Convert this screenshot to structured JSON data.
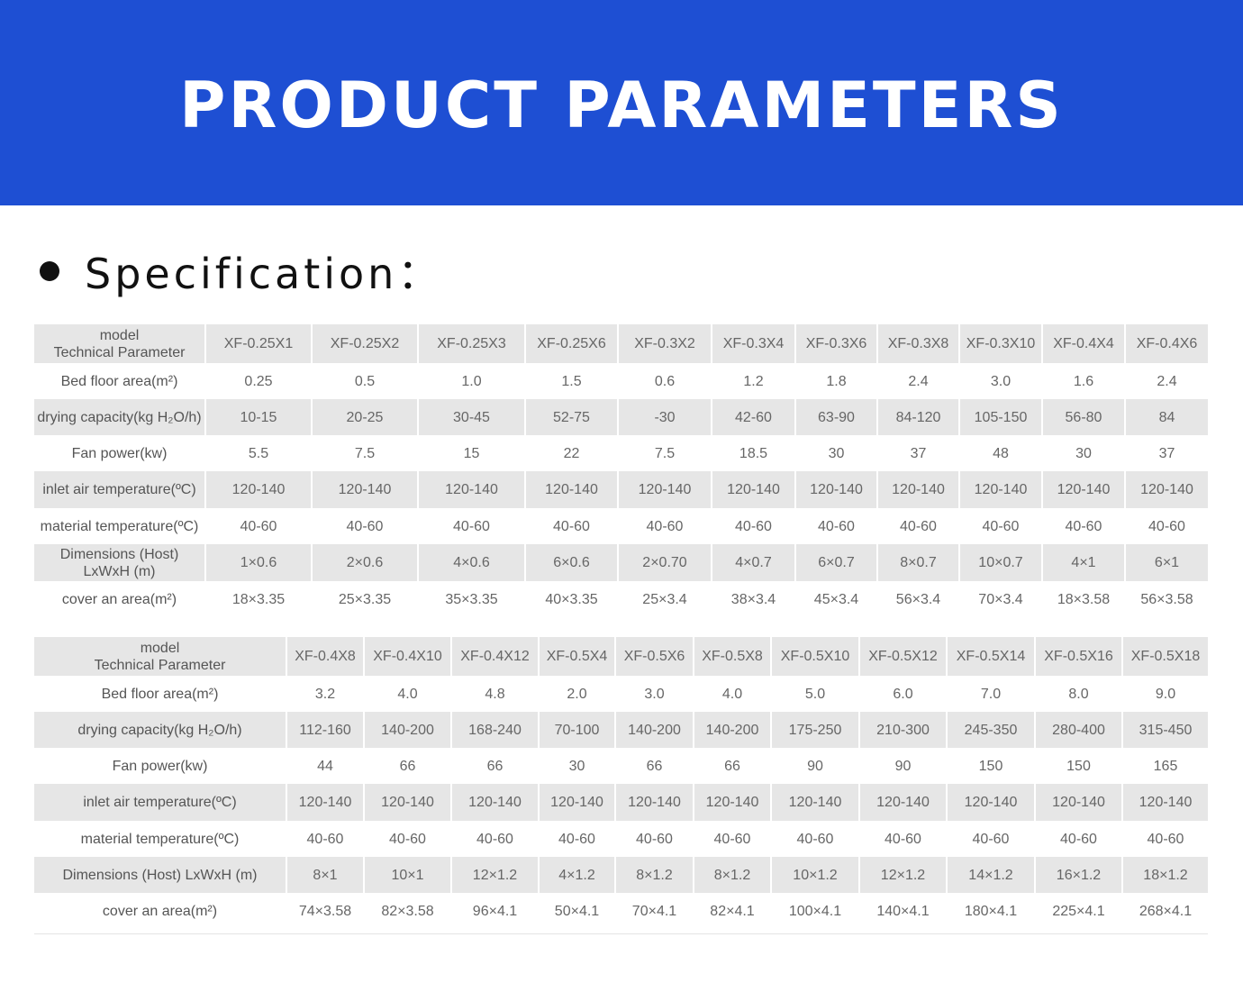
{
  "banner": {
    "title": "PRODUCT PARAMETERS"
  },
  "section": {
    "heading": "Specification："
  },
  "tables": [
    {
      "header_label_line1": "model",
      "header_label_line2": "Technical Parameter",
      "models": [
        "XF-0.25X1",
        "XF-0.25X2",
        "XF-0.25X3",
        "XF-0.25X6",
        "XF-0.3X2",
        "XF-0.3X4",
        "XF-0.3X6",
        "XF-0.3X8",
        "XF-0.3X10",
        "XF-0.4X4",
        "XF-0.4X6"
      ],
      "rows": [
        {
          "label": "Bed floor area(m²)",
          "values": [
            "0.25",
            "0.5",
            "1.0",
            "1.5",
            "0.6",
            "1.2",
            "1.8",
            "2.4",
            "3.0",
            "1.6",
            "2.4"
          ]
        },
        {
          "label": "drying capacity(kg H₂O/h)",
          "values": [
            "10-15",
            "20-25",
            "30-45",
            "52-75",
            "-30",
            "42-60",
            "63-90",
            "84-120",
            "105-150",
            "56-80",
            "84"
          ]
        },
        {
          "label": "Fan power(kw)",
          "values": [
            "5.5",
            "7.5",
            "15",
            "22",
            "7.5",
            "18.5",
            "30",
            "37",
            "48",
            "30",
            "37"
          ]
        },
        {
          "label": "inlet air temperature(ºC)",
          "values": [
            "120-140",
            "120-140",
            "120-140",
            "120-140",
            "120-140",
            "120-140",
            "120-140",
            "120-140",
            "120-140",
            "120-140",
            "120-140"
          ]
        },
        {
          "label": "material temperature(ºC)",
          "values": [
            "40-60",
            "40-60",
            "40-60",
            "40-60",
            "40-60",
            "40-60",
            "40-60",
            "40-60",
            "40-60",
            "40-60",
            "40-60"
          ]
        },
        {
          "label": "Dimensions (Host) LxWxH (m)",
          "values": [
            "1×0.6",
            "2×0.6",
            "4×0.6",
            "6×0.6",
            "2×0.70",
            "4×0.7",
            "6×0.7",
            "8×0.7",
            "10×0.7",
            "4×1",
            "6×1"
          ]
        },
        {
          "label": "cover an area(m²)",
          "values": [
            "18×3.35",
            "25×3.35",
            "35×3.35",
            "40×3.35",
            "25×3.4",
            "38×3.4",
            "45×3.4",
            "56×3.4",
            "70×3.4",
            "18×3.58",
            "56×3.58"
          ]
        }
      ]
    },
    {
      "header_label_line1": "model",
      "header_label_line2": "Technical Parameter",
      "models": [
        "XF-0.4X8",
        "XF-0.4X10",
        "XF-0.4X12",
        "XF-0.5X4",
        "XF-0.5X6",
        "XF-0.5X8",
        "XF-0.5X10",
        "XF-0.5X12",
        "XF-0.5X14",
        "XF-0.5X16",
        "XF-0.5X18"
      ],
      "rows": [
        {
          "label": "Bed floor area(m²)",
          "values": [
            "3.2",
            "4.0",
            "4.8",
            "2.0",
            "3.0",
            "4.0",
            "5.0",
            "6.0",
            "7.0",
            "8.0",
            "9.0"
          ]
        },
        {
          "label": "drying capacity(kg H₂O/h)",
          "values": [
            "112-160",
            "140-200",
            "168-240",
            "70-100",
            "140-200",
            "140-200",
            "175-250",
            "210-300",
            "245-350",
            "280-400",
            "315-450"
          ]
        },
        {
          "label": "Fan power(kw)",
          "values": [
            "44",
            "66",
            "66",
            "30",
            "66",
            "66",
            "90",
            "90",
            "150",
            "150",
            "165"
          ]
        },
        {
          "label": "inlet air temperature(ºC)",
          "values": [
            "120-140",
            "120-140",
            "120-140",
            "120-140",
            "120-140",
            "120-140",
            "120-140",
            "120-140",
            "120-140",
            "120-140",
            "120-140"
          ]
        },
        {
          "label": "material temperature(ºC)",
          "values": [
            "40-60",
            "40-60",
            "40-60",
            "40-60",
            "40-60",
            "40-60",
            "40-60",
            "40-60",
            "40-60",
            "40-60",
            "40-60"
          ]
        },
        {
          "label": "Dimensions (Host) LxWxH (m)",
          "values": [
            "8×1",
            "10×1",
            "12×1.2",
            "4×1.2",
            "8×1.2",
            "8×1.2",
            "10×1.2",
            "12×1.2",
            "14×1.2",
            "16×1.2",
            "18×1.2"
          ]
        },
        {
          "label": "cover an area(m²)",
          "values": [
            "74×3.58",
            "82×3.58",
            "96×4.1",
            "50×4.1",
            "70×4.1",
            "82×4.1",
            "100×4.1",
            "140×4.1",
            "180×4.1",
            "225×4.1",
            "268×4.1"
          ]
        }
      ]
    }
  ]
}
